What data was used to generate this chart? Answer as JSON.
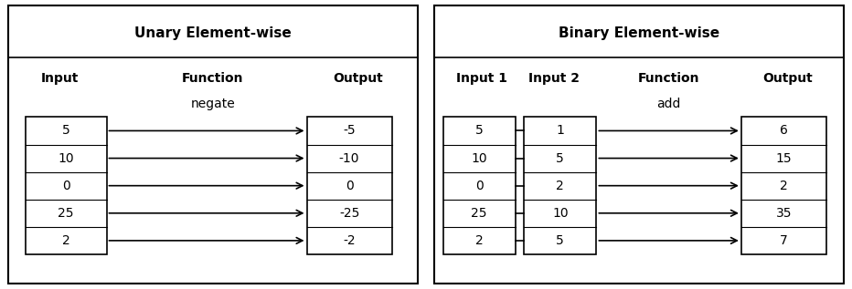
{
  "unary_title": "Unary Element-wise",
  "binary_title": "Binary Element-wise",
  "unary_input_label": "Input",
  "unary_function_label": "Function",
  "unary_output_label": "Output",
  "unary_function_name": "negate",
  "binary_input1_label": "Input 1",
  "binary_input2_label": "Input 2",
  "binary_function_label": "Function",
  "binary_output_label": "Output",
  "binary_function_name": "add",
  "unary_inputs": [
    "5",
    "10",
    "0",
    "25",
    "2"
  ],
  "unary_outputs": [
    "-5",
    "-10",
    "0",
    "-25",
    "-2"
  ],
  "binary_inputs1": [
    "5",
    "10",
    "0",
    "25",
    "2"
  ],
  "binary_inputs2": [
    "1",
    "5",
    "2",
    "10",
    "5"
  ],
  "binary_outputs": [
    "6",
    "15",
    "2",
    "35",
    "7"
  ],
  "box_edge_color": "#000000",
  "bg_color": "#ffffff",
  "text_color": "#000000",
  "title_fontsize": 11,
  "label_fontsize": 10,
  "cell_fontsize": 10,
  "func_name_fontsize": 10
}
